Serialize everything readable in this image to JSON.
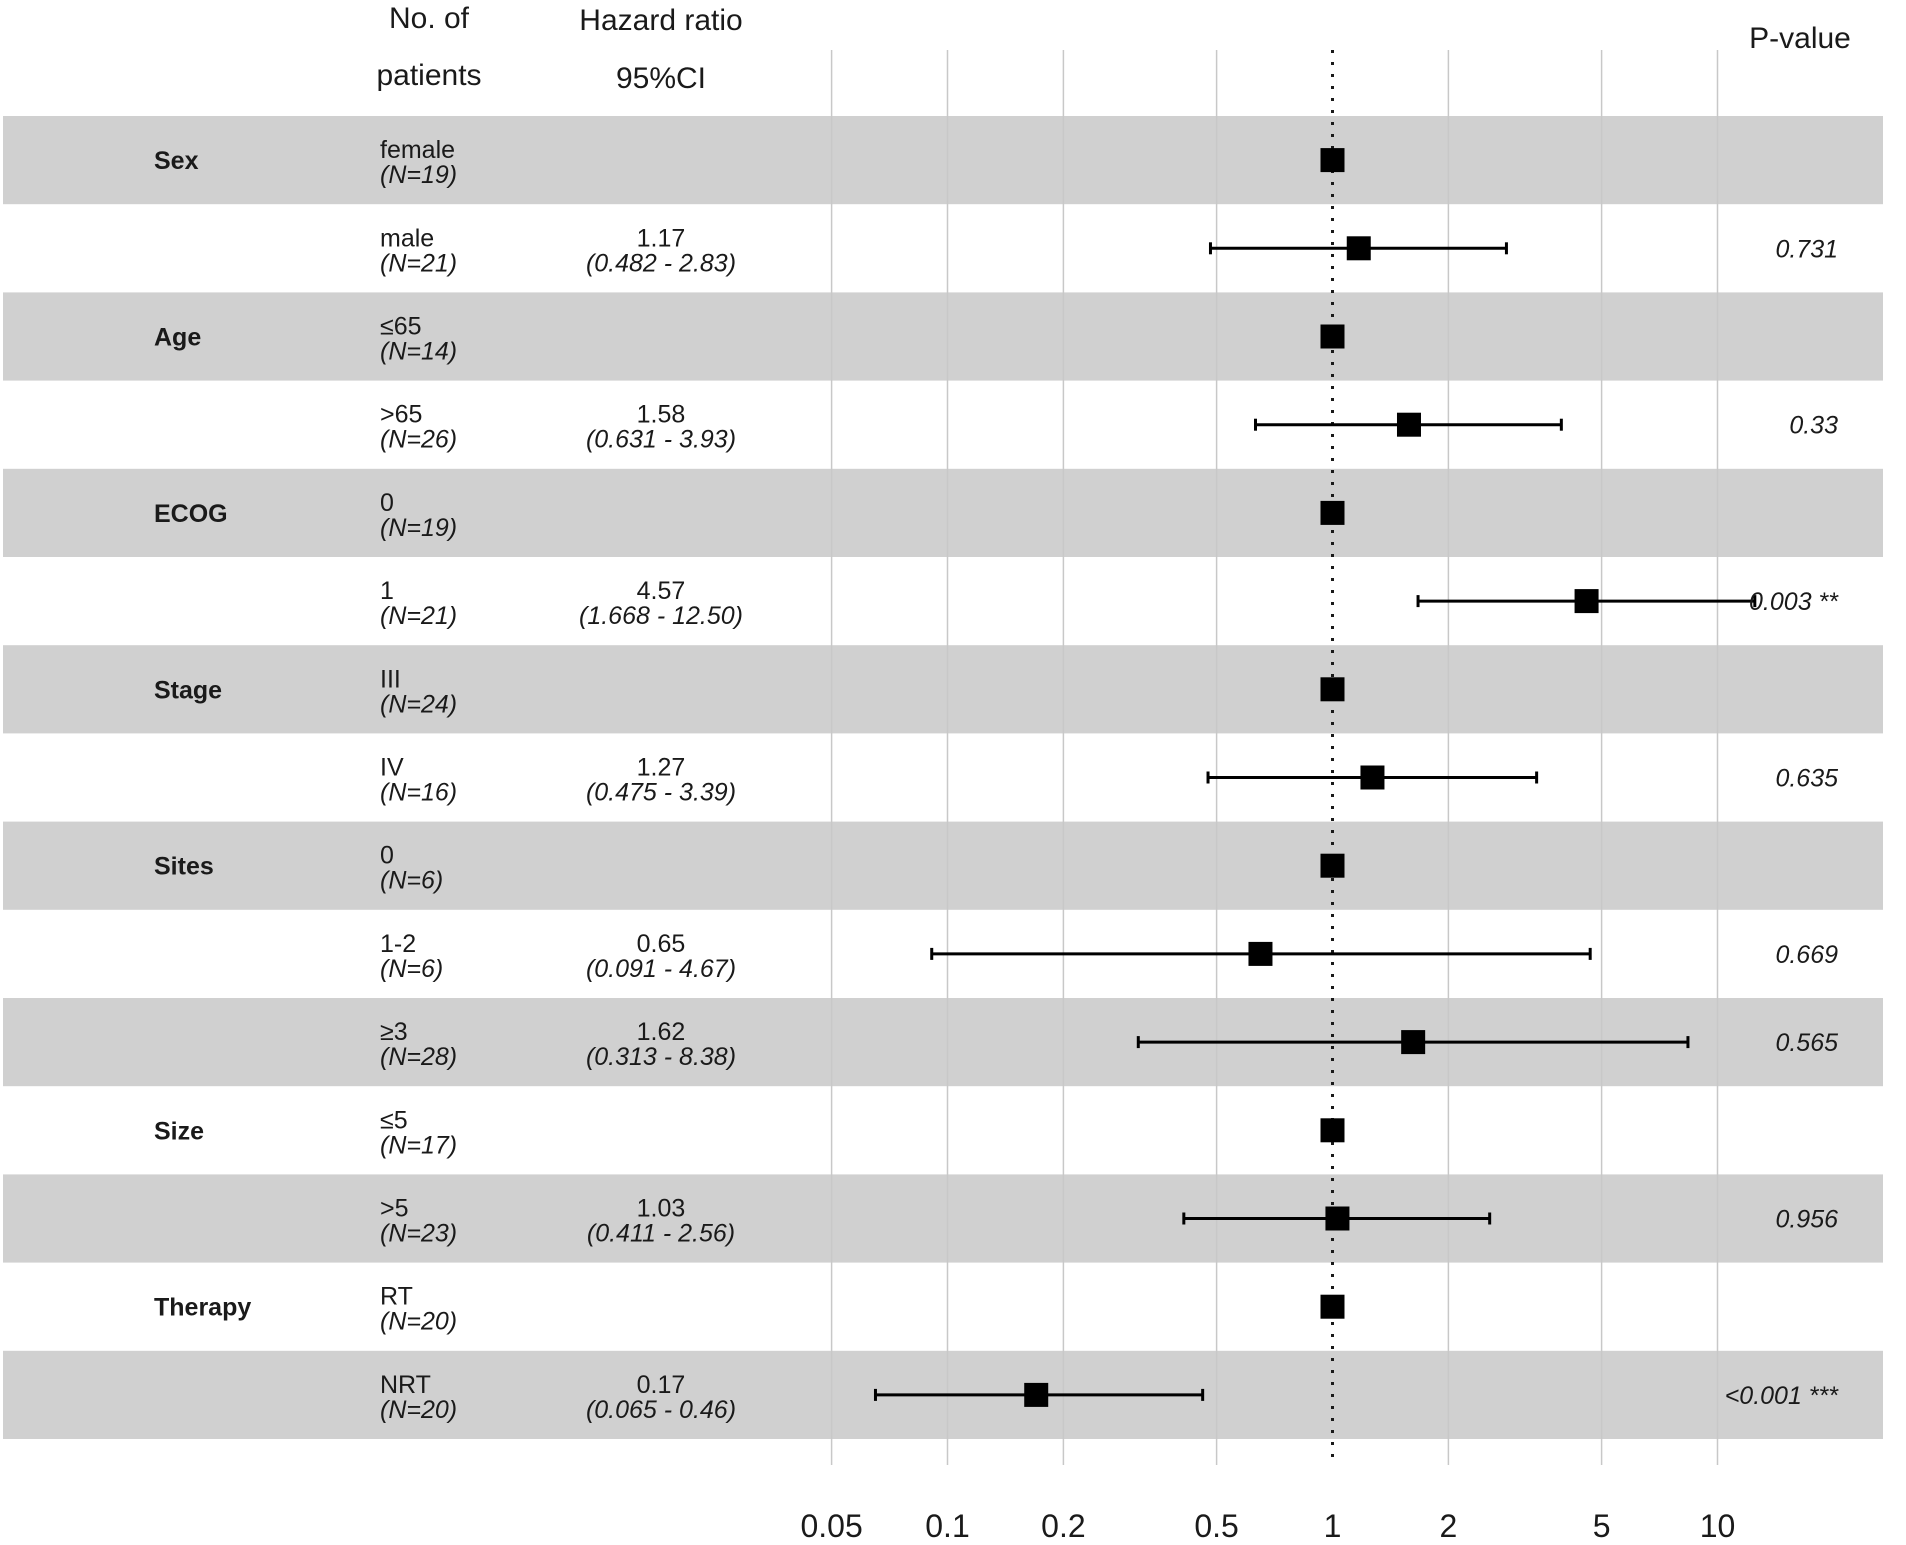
{
  "chart_data": {
    "type": "forest",
    "headers": {
      "patients_line1": "No. of",
      "patients_line2": "patients",
      "hr_line1": "Hazard ratio",
      "hr_line2": "95%CI",
      "pvalue": "P-value"
    },
    "x_scale": "log",
    "xlim": [
      0.05,
      10
    ],
    "x_ticks": [
      0.05,
      0.1,
      0.2,
      0.5,
      1,
      2,
      5,
      10
    ],
    "x_tick_labels": [
      "0.05",
      "0.1",
      "0.2",
      "0.5",
      "1",
      "2",
      "5",
      "10"
    ],
    "reference_line": 1,
    "colors": {
      "band": "#d0d0d0",
      "grid": "#c8c8c8",
      "marker": "#000000",
      "text": "#1a1a1a"
    },
    "rows": [
      {
        "variable": "Sex",
        "level": "female",
        "n": "(N=19)",
        "hr": 1,
        "hr_text": "",
        "ci_text": "",
        "p": "",
        "reference": true
      },
      {
        "variable": "",
        "level": "male",
        "n": "(N=21)",
        "hr": 1.17,
        "lower": 0.482,
        "upper": 2.83,
        "hr_text": "1.17",
        "ci_text": "(0.482 -  2.83)",
        "p": "0.731"
      },
      {
        "variable": "Age",
        "level": "≤65",
        "n": "(N=14)",
        "hr": 1,
        "hr_text": "",
        "ci_text": "",
        "p": "",
        "reference": true
      },
      {
        "variable": "",
        "level": ">65",
        "n": "(N=26)",
        "hr": 1.58,
        "lower": 0.631,
        "upper": 3.93,
        "hr_text": "1.58",
        "ci_text": "(0.631 -  3.93)",
        "p": "0.33"
      },
      {
        "variable": "ECOG",
        "level": "0",
        "n": "(N=19)",
        "hr": 1,
        "hr_text": "",
        "ci_text": "",
        "p": "",
        "reference": true
      },
      {
        "variable": "",
        "level": "1",
        "n": "(N=21)",
        "hr": 4.57,
        "lower": 1.668,
        "upper": 12.5,
        "hr_text": "4.57",
        "ci_text": "(1.668 - 12.50)",
        "p": "0.003 **"
      },
      {
        "variable": "Stage",
        "level": "III",
        "n": "(N=24)",
        "hr": 1,
        "hr_text": "",
        "ci_text": "",
        "p": "",
        "reference": true
      },
      {
        "variable": "",
        "level": "IV",
        "n": "(N=16)",
        "hr": 1.27,
        "lower": 0.475,
        "upper": 3.39,
        "hr_text": "1.27",
        "ci_text": "(0.475 -  3.39)",
        "p": "0.635"
      },
      {
        "variable": "Sites",
        "level": "0",
        "n": "(N=6)",
        "hr": 1,
        "hr_text": "",
        "ci_text": "",
        "p": "",
        "reference": true
      },
      {
        "variable": "",
        "level": "1-2",
        "n": "(N=6)",
        "hr": 0.65,
        "lower": 0.091,
        "upper": 4.67,
        "hr_text": "0.65",
        "ci_text": "(0.091 -  4.67)",
        "p": "0.669"
      },
      {
        "variable": "",
        "level": "≥3",
        "n": "(N=28)",
        "hr": 1.62,
        "lower": 0.313,
        "upper": 8.38,
        "hr_text": "1.62",
        "ci_text": "(0.313 -  8.38)",
        "p": "0.565"
      },
      {
        "variable": "Size",
        "level": "≤5",
        "n": "(N=17)",
        "hr": 1,
        "hr_text": "",
        "ci_text": "",
        "p": "",
        "reference": true
      },
      {
        "variable": "",
        "level": ">5",
        "n": "(N=23)",
        "hr": 1.03,
        "lower": 0.411,
        "upper": 2.56,
        "hr_text": "1.03",
        "ci_text": "(0.411 -  2.56)",
        "p": "0.956"
      },
      {
        "variable": "Therapy",
        "level": "RT",
        "n": "(N=20)",
        "hr": 1,
        "hr_text": "",
        "ci_text": "",
        "p": "",
        "reference": true
      },
      {
        "variable": "",
        "level": "NRT",
        "n": "(N=20)",
        "hr": 0.17,
        "lower": 0.065,
        "upper": 0.46,
        "hr_text": "0.17",
        "ci_text": "(0.065 -  0.46)",
        "p": "<0.001 ***"
      }
    ]
  }
}
